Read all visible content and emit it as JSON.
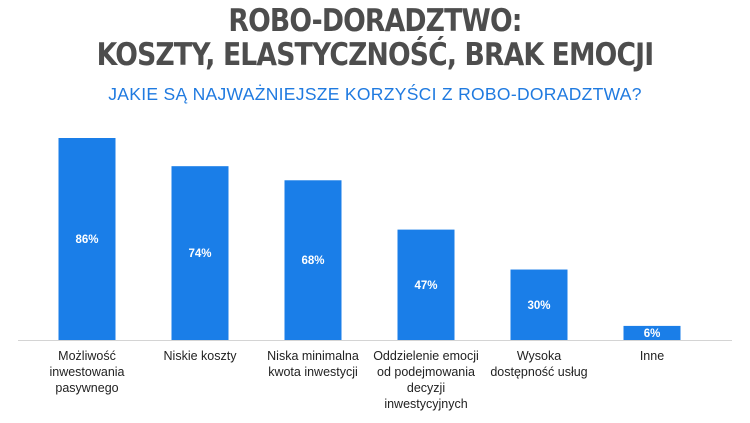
{
  "header": {
    "title_line1": "ROBO-DORADZTWO:",
    "title_line2": "KOSZTY, ELASTYCZNOŚĆ, BRAK EMOCJI",
    "subtitle": "JAKIE SĄ NAJWAŻNIEJSZE KORZYŚCI Z ROBO-DORADZTWA?"
  },
  "chart_data": {
    "type": "bar",
    "title": "JAKIE SĄ NAJWAŻNIEJSZE KORZYŚCI Z ROBO-DORADZTWA?",
    "categories": [
      [
        "Możliwość",
        "inwestowania",
        "pasywnego"
      ],
      [
        "Niskie koszty"
      ],
      [
        "Niska minimalna",
        "kwota inwestycji"
      ],
      [
        "Oddzielenie emocji",
        "od podejmowania",
        "decyzji",
        "inwestycyjnych"
      ],
      [
        "Wysoka",
        "dostępność usług"
      ],
      [
        "Inne"
      ]
    ],
    "values": [
      86,
      74,
      68,
      47,
      30,
      6
    ],
    "value_labels": [
      "86%",
      "74%",
      "68%",
      "47%",
      "30%",
      "6%"
    ],
    "ylim": [
      0,
      86
    ],
    "grid": false,
    "legend": "none",
    "bar_color": "#1a7ee8",
    "baseline_color": "#d4d4d4",
    "value_label_color": "#ffffff"
  }
}
